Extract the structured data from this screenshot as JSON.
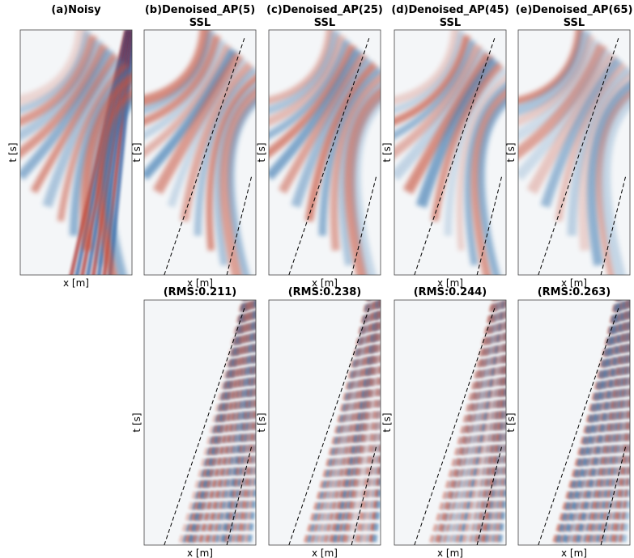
{
  "panels": [
    {
      "title": "(a)Noisy",
      "xlabel": "x [m]",
      "ylabel": "t [s]"
    },
    {
      "title": "(b)Denoised_AP(5)",
      "subtitle": "SSL",
      "xlabel": "x [m]",
      "ylabel": "t [s]"
    },
    {
      "title": "(c)Denoised_AP(25)",
      "subtitle": "SSL",
      "xlabel": "x [m]",
      "ylabel": "t [s]"
    },
    {
      "title": "(d)Denoised_AP(45)",
      "subtitle": "SSL",
      "xlabel": "x [m]",
      "ylabel": "t [s]"
    },
    {
      "title": "(e)Denoised_AP(65)",
      "subtitle": "SSL",
      "xlabel": "x [m]",
      "ylabel": "t [s]"
    }
  ],
  "residuals": [
    {
      "title": "(RMS:0.211)",
      "xlabel": "x [m]",
      "ylabel": "t [s]"
    },
    {
      "title": "(RMS:0.238)",
      "xlabel": "x [m]",
      "ylabel": "t [s]"
    },
    {
      "title": "(RMS:0.244)",
      "xlabel": "x [m]",
      "ylabel": "t [s]"
    },
    {
      "title": "(RMS:0.263)",
      "xlabel": "x [m]",
      "ylabel": "t [s]"
    }
  ]
}
